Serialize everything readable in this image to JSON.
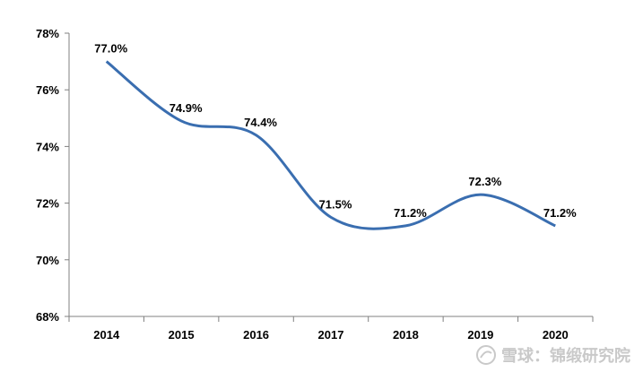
{
  "chart_data": {
    "type": "line",
    "title": "",
    "xlabel": "",
    "ylabel": "",
    "categories": [
      "2014",
      "2015",
      "2016",
      "2017",
      "2018",
      "2019",
      "2020"
    ],
    "series": [
      {
        "values": [
          77.0,
          74.9,
          74.4,
          71.5,
          71.2,
          72.3,
          71.2
        ],
        "labels": [
          "77.0%",
          "74.9%",
          "74.4%",
          "71.5%",
          "71.2%",
          "72.3%",
          "71.2%"
        ],
        "color": "#3a6eb0"
      }
    ],
    "ylim": [
      68,
      78
    ],
    "yticks": [
      68,
      70,
      72,
      74,
      76,
      78
    ],
    "ytick_labels": [
      "68%",
      "70%",
      "72%",
      "74%",
      "76%",
      "78%"
    ],
    "grid": false,
    "legend": "none",
    "smooth": true
  },
  "watermark": {
    "text": "雪球：锦缎研究院",
    "logo_icon": "snowball-logo-icon"
  }
}
